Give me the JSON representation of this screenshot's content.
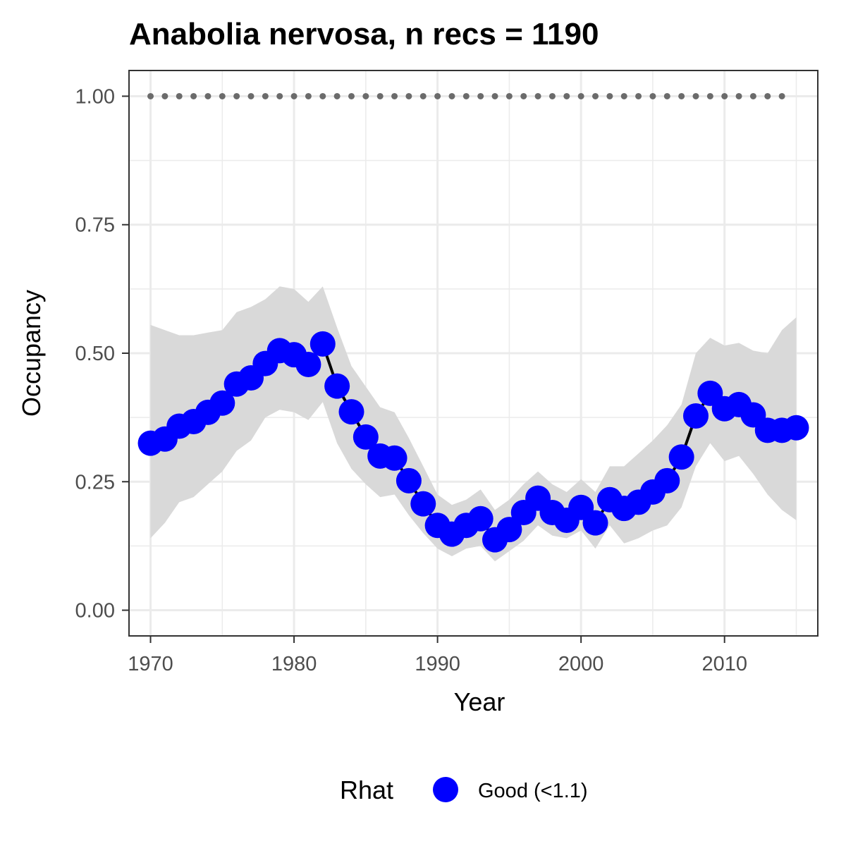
{
  "chart_data": {
    "type": "line",
    "title": "Anabolia nervosa, n recs = 1190",
    "xlabel": "Year",
    "ylabel": "Occupancy",
    "xlim": [
      1968.5,
      2016.5
    ],
    "ylim": [
      -0.05,
      1.05
    ],
    "x_ticks": [
      1970,
      1980,
      1990,
      2000,
      2010
    ],
    "x_tick_labels": [
      "1970",
      "1980",
      "1990",
      "2000",
      "2010"
    ],
    "y_ticks": [
      0,
      0.25,
      0.5,
      0.75,
      1
    ],
    "y_tick_labels": [
      "0.00",
      "0.25",
      "0.50",
      "0.75",
      "1.00"
    ],
    "grid": true,
    "legend": {
      "position": "bottom",
      "title": "Rhat",
      "items": [
        {
          "label": "Good (<1.1)",
          "color": "#0000ff"
        }
      ]
    },
    "colors": {
      "points": "#0000ff",
      "line": "#000000",
      "ribbon": "#d9d9d9",
      "reference_dots": "#6b6b6b",
      "grid": "#ebebeb",
      "panel_border": "#333333"
    },
    "x": [
      1970,
      1971,
      1972,
      1973,
      1974,
      1975,
      1976,
      1977,
      1978,
      1979,
      1980,
      1981,
      1982,
      1983,
      1984,
      1985,
      1986,
      1987,
      1988,
      1989,
      1990,
      1991,
      1992,
      1993,
      1994,
      1995,
      1996,
      1997,
      1998,
      1999,
      2000,
      2001,
      2002,
      2003,
      2004,
      2005,
      2006,
      2007,
      2008,
      2009,
      2010,
      2011,
      2012,
      2013,
      2014,
      2015
    ],
    "series": [
      {
        "values": [
          0.325,
          0.333,
          0.358,
          0.367,
          0.385,
          0.403,
          0.44,
          0.452,
          0.48,
          0.505,
          0.497,
          0.478,
          0.518,
          0.436,
          0.386,
          0.337,
          0.3,
          0.296,
          0.252,
          0.207,
          0.165,
          0.148,
          0.165,
          0.178,
          0.137,
          0.157,
          0.19,
          0.218,
          0.19,
          0.175,
          0.2,
          0.17,
          0.215,
          0.198,
          0.21,
          0.23,
          0.252,
          0.298,
          0.378,
          0.422,
          0.392,
          0.4,
          0.38,
          0.35,
          0.35,
          0.355
        ],
        "lower": [
          0.14,
          0.17,
          0.21,
          0.22,
          0.245,
          0.27,
          0.31,
          0.33,
          0.375,
          0.39,
          0.385,
          0.37,
          0.405,
          0.325,
          0.275,
          0.245,
          0.22,
          0.225,
          0.185,
          0.15,
          0.12,
          0.105,
          0.12,
          0.125,
          0.095,
          0.115,
          0.135,
          0.165,
          0.145,
          0.14,
          0.155,
          0.12,
          0.165,
          0.13,
          0.14,
          0.155,
          0.165,
          0.2,
          0.28,
          0.325,
          0.29,
          0.3,
          0.265,
          0.225,
          0.195,
          0.175
        ],
        "upper": [
          0.555,
          0.545,
          0.535,
          0.535,
          0.54,
          0.545,
          0.58,
          0.59,
          0.605,
          0.63,
          0.625,
          0.6,
          0.63,
          0.55,
          0.475,
          0.435,
          0.395,
          0.385,
          0.335,
          0.28,
          0.225,
          0.205,
          0.215,
          0.235,
          0.195,
          0.215,
          0.245,
          0.27,
          0.245,
          0.23,
          0.255,
          0.23,
          0.28,
          0.28,
          0.305,
          0.33,
          0.36,
          0.4,
          0.5,
          0.53,
          0.515,
          0.52,
          0.505,
          0.5,
          0.545,
          0.57
        ]
      }
    ],
    "reference_line": {
      "y": 1.0,
      "x_start": 1970,
      "x_end": 2014
    }
  }
}
